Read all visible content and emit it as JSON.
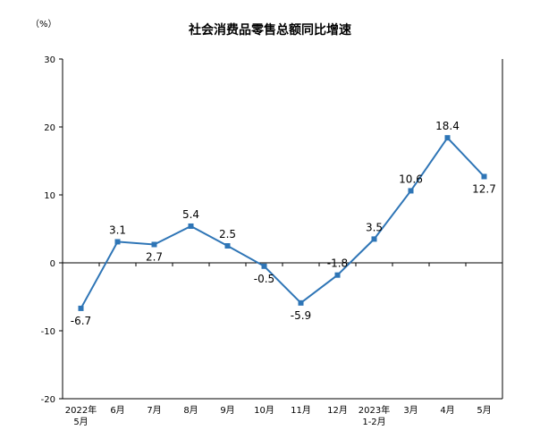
{
  "chart_data": {
    "type": "line",
    "title": "社会消费品零售总额同比增速",
    "unit_label": "（%）",
    "categories": [
      [
        "2022年",
        "5月"
      ],
      [
        "6月"
      ],
      [
        "7月"
      ],
      [
        "8月"
      ],
      [
        "9月"
      ],
      [
        "10月"
      ],
      [
        "11月"
      ],
      [
        "12月"
      ],
      [
        "2023年",
        "1-2月"
      ],
      [
        "3月"
      ],
      [
        "4月"
      ],
      [
        "5月"
      ]
    ],
    "series": [
      {
        "values": [
          -6.7,
          3.1,
          2.7,
          5.4,
          2.5,
          -0.5,
          -5.9,
          -1.8,
          3.5,
          10.6,
          18.4,
          12.7
        ]
      }
    ],
    "data_labels": [
      "-6.7",
      "3.1",
      "2.7",
      "5.4",
      "2.5",
      "-0.5",
      "-5.9",
      "-1.8",
      "3.5",
      "10.6",
      "18.4",
      "12.7"
    ],
    "ylim": [
      -20,
      30
    ],
    "yticks": [
      "30",
      "20",
      "10",
      "0",
      "-10",
      "-20"
    ],
    "ytick_values": [
      30,
      20,
      10,
      0,
      -10,
      -20
    ],
    "line_color": "#2e75b6",
    "marker_color": "#2e75b6",
    "grid": false,
    "legend": "none"
  }
}
